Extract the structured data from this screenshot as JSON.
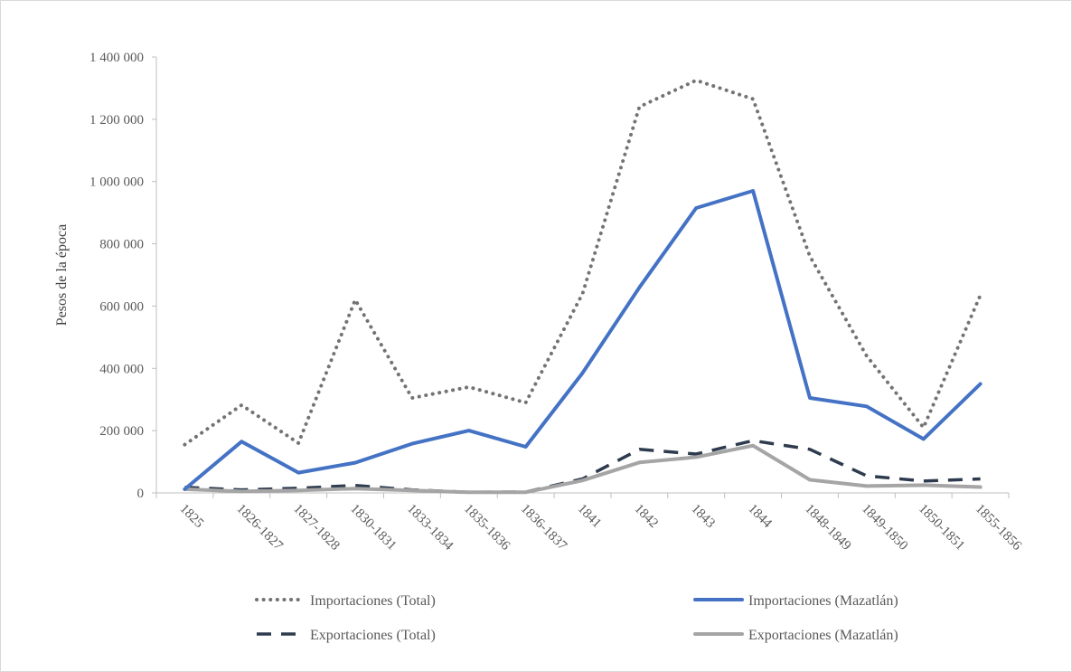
{
  "chart_data": {
    "type": "line",
    "title": "",
    "xlabel": "",
    "ylabel": "Pesos de la época",
    "ylim": [
      0,
      1400000
    ],
    "yticks": [
      0,
      200000,
      400000,
      600000,
      800000,
      1000000,
      1200000,
      1400000
    ],
    "ytick_labels": [
      "0",
      "200 000",
      "400 000",
      "600 000",
      "800 000",
      "1 000 000",
      "1 200 000",
      "1 400 000"
    ],
    "categories": [
      "1825",
      "1826-1827",
      "1827-1828",
      "1830-1831",
      "1833-1834",
      "1835-1836",
      "1836-1837",
      "1841",
      "1842",
      "1843",
      "1844",
      "1848-1849",
      "1849-1850",
      "1850-1851",
      "1855-1856"
    ],
    "grid": false,
    "legend_position": "bottom",
    "series": [
      {
        "name": "Importaciones (Total)",
        "color": "#737373",
        "style": "dotted",
        "values": [
          155000,
          282000,
          160000,
          620000,
          305000,
          340000,
          290000,
          640000,
          1240000,
          1325000,
          1265000,
          760000,
          440000,
          210000,
          635000
        ]
      },
      {
        "name": "Importaciones (Mazatlán)",
        "color": "#4472c4",
        "style": "solid",
        "values": [
          12000,
          165000,
          65000,
          97000,
          158000,
          200000,
          148000,
          385000,
          660000,
          915000,
          970000,
          305000,
          278000,
          173000,
          350000
        ]
      },
      {
        "name": "Exportaciones (Total)",
        "color": "#2e3b4e",
        "style": "dashed",
        "values": [
          18000,
          10000,
          15000,
          24000,
          10000,
          2000,
          3000,
          45000,
          140000,
          125000,
          168000,
          140000,
          55000,
          38000,
          45000
        ]
      },
      {
        "name": "Exportaciones (Mazatlán)",
        "color": "#a5a5a5",
        "style": "solid",
        "values": [
          12000,
          5000,
          8000,
          14000,
          8000,
          2000,
          2000,
          40000,
          98000,
          115000,
          152000,
          42000,
          22000,
          25000,
          19000
        ]
      }
    ]
  }
}
